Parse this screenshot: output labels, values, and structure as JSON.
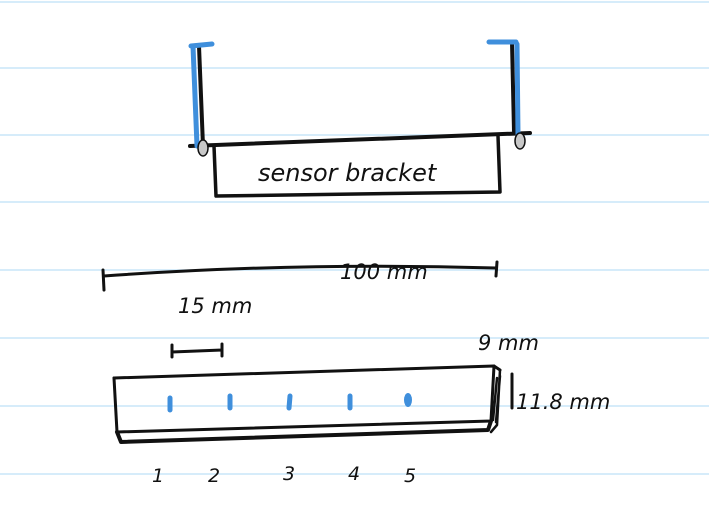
{
  "colors": {
    "paper": "#ffffff",
    "rule_line": "#c9e6f8",
    "ink": "#111111",
    "blue_ink": "#3f8fdc",
    "peg_grey": "#c8c8c8"
  },
  "top_sketch": {
    "bracket_label": "sensor bracket"
  },
  "bottom_sketch": {
    "length_label": "100 mm",
    "spacing_label": "15 mm",
    "depth_label": "9 mm",
    "height_label": "11.8 mm",
    "hole_numbers": [
      "1",
      "2",
      "3",
      "4",
      "5"
    ]
  }
}
